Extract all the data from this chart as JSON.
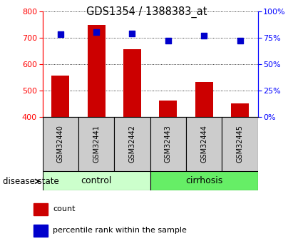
{
  "title": "GDS1354 / 1388383_at",
  "samples": [
    "GSM32440",
    "GSM32441",
    "GSM32442",
    "GSM32443",
    "GSM32444",
    "GSM32445"
  ],
  "counts": [
    557,
    748,
    655,
    463,
    532,
    452
  ],
  "percentiles": [
    78,
    80,
    79,
    72,
    77,
    72
  ],
  "groups": [
    "control",
    "control",
    "control",
    "cirrhosis",
    "cirrhosis",
    "cirrhosis"
  ],
  "ylim_left": [
    400,
    800
  ],
  "ylim_right": [
    0,
    100
  ],
  "yticks_left": [
    400,
    500,
    600,
    700,
    800
  ],
  "yticks_right": [
    0,
    25,
    50,
    75,
    100
  ],
  "bar_color": "#cc0000",
  "dot_color": "#0000cc",
  "control_color": "#ccffcc",
  "cirrhosis_color": "#66ee66",
  "sample_box_color": "#cccccc",
  "grid_color": "black",
  "label_count": "count",
  "label_percentile": "percentile rank within the sample",
  "disease_state_label": "disease state",
  "bar_width": 0.5
}
